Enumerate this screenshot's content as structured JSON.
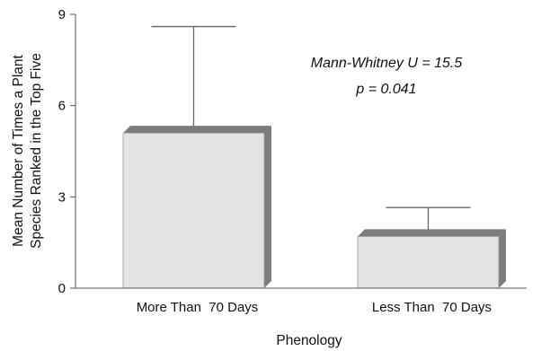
{
  "chart_data": {
    "type": "bar",
    "title": "",
    "categories": [
      "More Than  70 Days",
      "Less Than  70 Days"
    ],
    "values": [
      5.1,
      1.7
    ],
    "error_upper": [
      8.6,
      2.65
    ],
    "xlabel": "Phenology",
    "ylabel_lines": [
      "Mean Number of Times a Plant",
      "Species Ranked in the Top Five"
    ],
    "ylim": [
      0,
      9
    ],
    "yticks": [
      0,
      3,
      6,
      9
    ],
    "grid": false,
    "bar_style": "3d",
    "colors": {
      "bar_face": "#e3e3e3",
      "bar_side": "#7c7c7c",
      "axis": "#555555"
    },
    "annotations": [
      "Mann-Whitney U = 15.5",
      "p = 0.041"
    ]
  }
}
